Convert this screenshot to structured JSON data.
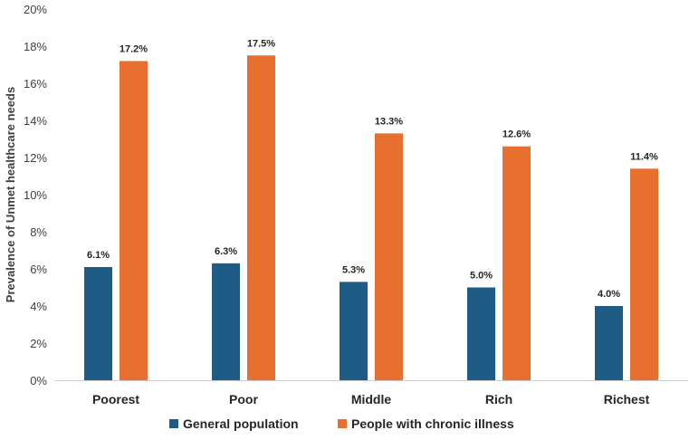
{
  "chart_data": {
    "type": "bar",
    "title": "",
    "xlabel": "",
    "ylabel": "Prevalence of Unmet healthcare needs",
    "categories": [
      "Poorest",
      "Poor",
      "Middle",
      "Rich",
      "Richest"
    ],
    "ylim": [
      0,
      20
    ],
    "yticks": [
      "0%",
      "2%",
      "4%",
      "6%",
      "8%",
      "10%",
      "12%",
      "14%",
      "16%",
      "18%",
      "20%"
    ],
    "grid": false,
    "legend_position": "bottom",
    "series": [
      {
        "name": "General population",
        "color": "#1f5c85",
        "values": [
          6.1,
          6.3,
          5.3,
          5.0,
          4.0
        ],
        "labels": [
          "6.1%",
          "6.3%",
          "5.3%",
          "5.0%",
          "4.0%"
        ]
      },
      {
        "name": "People with chronic illness",
        "color": "#e8702f",
        "values": [
          17.2,
          17.5,
          13.3,
          12.6,
          11.4
        ],
        "labels": [
          "17.2%",
          "17.5%",
          "13.3%",
          "12.6%",
          "11.4%"
        ]
      }
    ]
  }
}
